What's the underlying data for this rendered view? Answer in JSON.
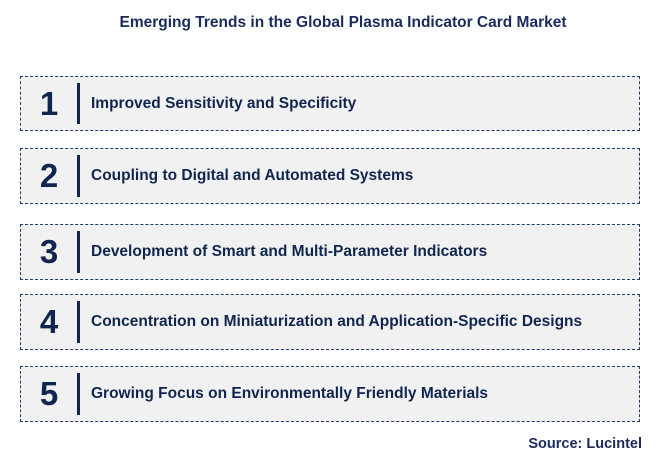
{
  "title": "Emerging Trends in the Global Plasma Indicator Card Market",
  "trends": [
    {
      "number": "1",
      "label": "Improved Sensitivity and Specificity"
    },
    {
      "number": "2",
      "label": "Coupling to Digital and Automated Systems"
    },
    {
      "number": "3",
      "label": "Development of Smart and Multi-Parameter Indicators"
    },
    {
      "number": "4",
      "label": "Concentration on Miniaturization and Application-Specific Designs"
    },
    {
      "number": "5",
      "label": "Growing Focus on Environmentally Friendly Materials"
    }
  ],
  "source": "Source: Lucintel",
  "colors": {
    "text": "#10264f",
    "box_fill": "#f1f1f1",
    "box_border": "#1f3d6b"
  }
}
